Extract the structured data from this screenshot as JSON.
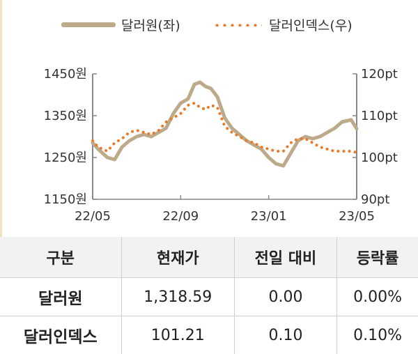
{
  "legend": {
    "series1": "달러원(좌)",
    "series2": "달러인덱스(우)"
  },
  "colors": {
    "series1": "#bcaa8a",
    "series2": "#ea7a28"
  },
  "chart_data": {
    "type": "line",
    "x_ticks": [
      "22/05",
      "22/09",
      "23/01",
      "23/05"
    ],
    "y_left_ticks": [
      "1450원",
      "1350원",
      "1250원",
      "1150원"
    ],
    "y_right_ticks": [
      "120pt",
      "110pt",
      "100pt",
      "90pt"
    ],
    "y_left_range": [
      1150,
      1450
    ],
    "y_right_range": [
      90,
      120
    ],
    "x_range": [
      "22/05",
      "23/05"
    ],
    "series": [
      {
        "name": "달러원(좌)",
        "axis": "left",
        "style": "solid",
        "points": [
          [
            "22/05",
            1285
          ],
          [
            "22/05",
            1270
          ],
          [
            "22/06",
            1250
          ],
          [
            "22/06",
            1245
          ],
          [
            "22/06",
            1275
          ],
          [
            "22/07",
            1290
          ],
          [
            "22/07",
            1300
          ],
          [
            "22/07",
            1305
          ],
          [
            "22/08",
            1300
          ],
          [
            "22/08",
            1310
          ],
          [
            "22/08",
            1320
          ],
          [
            "22/09",
            1355
          ],
          [
            "22/09",
            1380
          ],
          [
            "22/09",
            1390
          ],
          [
            "22/10",
            1425
          ],
          [
            "22/10",
            1430
          ],
          [
            "22/10",
            1420
          ],
          [
            "22/10",
            1415
          ],
          [
            "22/11",
            1395
          ],
          [
            "22/11",
            1345
          ],
          [
            "22/11",
            1320
          ],
          [
            "22/12",
            1305
          ],
          [
            "22/12",
            1290
          ],
          [
            "22/12",
            1280
          ],
          [
            "23/01",
            1270
          ],
          [
            "23/01",
            1250
          ],
          [
            "23/01",
            1235
          ],
          [
            "23/02",
            1230
          ],
          [
            "23/02",
            1260
          ],
          [
            "23/02",
            1290
          ],
          [
            "23/03",
            1300
          ],
          [
            "23/03",
            1295
          ],
          [
            "23/03",
            1300
          ],
          [
            "23/04",
            1310
          ],
          [
            "23/04",
            1320
          ],
          [
            "23/04",
            1335
          ],
          [
            "23/05",
            1340
          ],
          [
            "23/05",
            1318.59
          ]
        ]
      },
      {
        "name": "달러인덱스(우)",
        "axis": "right",
        "style": "dotted",
        "points": [
          [
            "22/05",
            104
          ],
          [
            "22/05",
            102.5
          ],
          [
            "22/06",
            101.5
          ],
          [
            "22/06",
            103.5
          ],
          [
            "22/06",
            104.5
          ],
          [
            "22/07",
            106
          ],
          [
            "22/07",
            106.5
          ],
          [
            "22/07",
            106
          ],
          [
            "22/08",
            105.5
          ],
          [
            "22/08",
            106.5
          ],
          [
            "22/08",
            108.5
          ],
          [
            "22/09",
            109.5
          ],
          [
            "22/09",
            110.5
          ],
          [
            "22/09",
            112.5
          ],
          [
            "22/10",
            113
          ],
          [
            "22/10",
            112
          ],
          [
            "22/10",
            111.5
          ],
          [
            "22/10",
            112.5
          ],
          [
            "22/11",
            112
          ],
          [
            "22/11",
            107.5
          ],
          [
            "22/11",
            106
          ],
          [
            "22/12",
            105
          ],
          [
            "22/12",
            104
          ],
          [
            "22/12",
            103.5
          ],
          [
            "23/01",
            102.5
          ],
          [
            "23/01",
            102
          ],
          [
            "23/01",
            101.5
          ],
          [
            "23/02",
            101.5
          ],
          [
            "23/02",
            103.5
          ],
          [
            "23/02",
            104.5
          ],
          [
            "23/03",
            104.5
          ],
          [
            "23/03",
            103.5
          ],
          [
            "23/03",
            102.5
          ],
          [
            "23/04",
            102
          ],
          [
            "23/04",
            101.5
          ],
          [
            "23/04",
            101.5
          ],
          [
            "23/05",
            101.5
          ],
          [
            "23/05",
            101.21
          ]
        ]
      }
    ]
  },
  "table": {
    "headers": [
      "구분",
      "현재가",
      "전일 대비",
      "등락률"
    ],
    "rows": [
      [
        "달러원",
        "1,318.59",
        "0.00",
        "0.00%"
      ],
      [
        "달러인덱스",
        "101.21",
        "0.10",
        "0.10%"
      ]
    ]
  }
}
